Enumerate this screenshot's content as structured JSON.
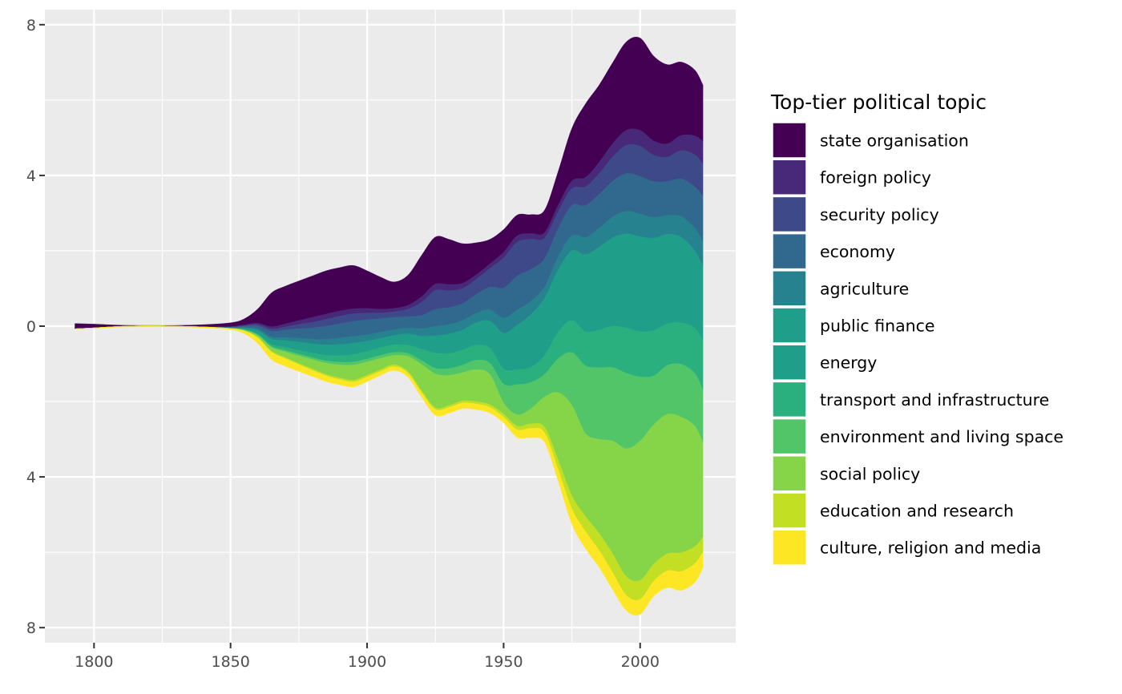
{
  "chart_data": {
    "type": "area",
    "subtype": "streamgraph",
    "title": "",
    "xlabel": "",
    "ylabel": "",
    "x_ticks": [
      "1800",
      "1850",
      "1900",
      "1950",
      "2000"
    ],
    "y_ticks": [
      "8",
      "4",
      "0",
      "4",
      "8"
    ],
    "xlim": [
      1782,
      2035
    ],
    "ylim": [
      -8.4,
      8.4
    ],
    "grid": true,
    "legend": {
      "title": "Top-tier political topic",
      "position": "right"
    },
    "x": [
      1793,
      1800,
      1810,
      1820,
      1830,
      1840,
      1850,
      1855,
      1860,
      1865,
      1870,
      1875,
      1880,
      1885,
      1890,
      1895,
      1900,
      1905,
      1910,
      1915,
      1920,
      1925,
      1930,
      1935,
      1940,
      1945,
      1950,
      1955,
      1960,
      1965,
      1970,
      1975,
      1980,
      1985,
      1990,
      1995,
      2000,
      2005,
      2010,
      2015,
      2020,
      2023
    ],
    "series": [
      {
        "name": "state organisation",
        "color": "#440154",
        "values": [
          0.14,
          0.1,
          0.03,
          0.01,
          0.02,
          0.06,
          0.1,
          0.16,
          0.38,
          0.9,
          1.0,
          1.05,
          1.1,
          1.15,
          1.15,
          1.15,
          1.0,
          0.85,
          0.7,
          0.8,
          1.1,
          1.25,
          1.2,
          1.05,
          0.85,
          0.65,
          0.6,
          0.55,
          0.5,
          0.6,
          0.9,
          1.4,
          1.95,
          2.05,
          2.15,
          2.35,
          2.45,
          2.25,
          2.1,
          1.95,
          1.75,
          1.5
        ]
      },
      {
        "name": "foreign policy",
        "color": "#482878",
        "values": [
          0,
          0,
          0,
          0,
          0,
          0,
          0.01,
          0.02,
          0.04,
          0.06,
          0.08,
          0.1,
          0.13,
          0.14,
          0.14,
          0.13,
          0.12,
          0.1,
          0.09,
          0.1,
          0.15,
          0.17,
          0.16,
          0.14,
          0.12,
          0.12,
          0.15,
          0.17,
          0.15,
          0.14,
          0.17,
          0.2,
          0.25,
          0.3,
          0.35,
          0.4,
          0.42,
          0.38,
          0.35,
          0.4,
          0.5,
          0.6
        ]
      },
      {
        "name": "security policy",
        "color": "#3e4989",
        "values": [
          0,
          0,
          0,
          0,
          0,
          0,
          0.01,
          0.02,
          0.04,
          0.06,
          0.08,
          0.12,
          0.15,
          0.18,
          0.2,
          0.2,
          0.18,
          0.15,
          0.15,
          0.2,
          0.35,
          0.5,
          0.45,
          0.4,
          0.4,
          0.5,
          0.8,
          0.9,
          0.8,
          0.55,
          0.45,
          0.45,
          0.5,
          0.55,
          0.65,
          0.75,
          0.8,
          0.7,
          0.65,
          0.75,
          0.85,
          0.85
        ]
      },
      {
        "name": "economy",
        "color": "#31688e",
        "values": [
          0,
          0,
          0,
          0,
          0,
          0,
          0.01,
          0.03,
          0.08,
          0.15,
          0.2,
          0.25,
          0.3,
          0.35,
          0.38,
          0.4,
          0.4,
          0.36,
          0.33,
          0.3,
          0.35,
          0.45,
          0.45,
          0.45,
          0.5,
          0.6,
          0.8,
          0.9,
          0.85,
          0.75,
          0.75,
          0.8,
          0.85,
          0.9,
          0.95,
          1.0,
          1.0,
          0.95,
          0.9,
          1.0,
          1.1,
          1.2
        ]
      },
      {
        "name": "agriculture",
        "color": "#26828e",
        "values": [
          0,
          0,
          0,
          0,
          0,
          0,
          0.01,
          0.02,
          0.04,
          0.06,
          0.08,
          0.1,
          0.12,
          0.15,
          0.17,
          0.18,
          0.17,
          0.16,
          0.15,
          0.16,
          0.2,
          0.25,
          0.25,
          0.25,
          0.25,
          0.3,
          0.4,
          0.4,
          0.35,
          0.3,
          0.35,
          0.4,
          0.45,
          0.5,
          0.55,
          0.6,
          0.6,
          0.55,
          0.5,
          0.55,
          0.6,
          0.65
        ]
      },
      {
        "name": "public finance",
        "color": "#1f9e89",
        "values": [
          0,
          0,
          0,
          0,
          0,
          0,
          0.01,
          0.03,
          0.08,
          0.12,
          0.15,
          0.18,
          0.2,
          0.22,
          0.25,
          0.25,
          0.22,
          0.2,
          0.2,
          0.25,
          0.3,
          0.4,
          0.45,
          0.45,
          0.5,
          0.6,
          0.8,
          1.0,
          1.2,
          1.3,
          1.4,
          1.55,
          1.7,
          1.8,
          1.9,
          2.0,
          2.0,
          1.95,
          1.9,
          1.8,
          1.6,
          1.55
        ]
      },
      {
        "name": "energy",
        "color": "#1f9e89",
        "values": [
          0,
          0,
          0,
          0,
          0,
          0,
          0,
          0,
          0.01,
          0.02,
          0.03,
          0.04,
          0.05,
          0.05,
          0.05,
          0.05,
          0.05,
          0.05,
          0.05,
          0.05,
          0.05,
          0.06,
          0.07,
          0.08,
          0.1,
          0.12,
          0.15,
          0.18,
          0.2,
          0.22,
          0.25,
          0.3,
          0.35,
          0.4,
          0.45,
          0.5,
          0.52,
          0.5,
          0.48,
          0.47,
          0.45,
          0.45
        ]
      },
      {
        "name": "transport and infrastructure",
        "color": "#2ab07f",
        "values": [
          0,
          0,
          0,
          0,
          0,
          0,
          0,
          0.01,
          0.02,
          0.05,
          0.08,
          0.1,
          0.12,
          0.15,
          0.17,
          0.2,
          0.2,
          0.2,
          0.2,
          0.22,
          0.3,
          0.4,
          0.4,
          0.4,
          0.4,
          0.4,
          0.4,
          0.4,
          0.4,
          0.5,
          0.7,
          0.85,
          0.9,
          1.0,
          1.1,
          1.2,
          1.2,
          1.2,
          1.1,
          1.1,
          1.2,
          1.3
        ]
      },
      {
        "name": "environment and living space",
        "color": "#52c569",
        "values": [
          0,
          0,
          0,
          0,
          0,
          0,
          0,
          0.01,
          0.02,
          0.03,
          0.04,
          0.05,
          0.05,
          0.06,
          0.07,
          0.08,
          0.08,
          0.08,
          0.08,
          0.08,
          0.1,
          0.15,
          0.18,
          0.2,
          0.25,
          0.3,
          0.5,
          0.8,
          0.7,
          0.6,
          0.9,
          1.4,
          1.8,
          1.9,
          1.95,
          2.0,
          1.7,
          1.3,
          1.3,
          1.4,
          1.4,
          1.4
        ]
      },
      {
        "name": "social policy",
        "color": "#86d549",
        "values": [
          0,
          0,
          0,
          0,
          0,
          0,
          0,
          0.02,
          0.05,
          0.1,
          0.15,
          0.2,
          0.25,
          0.3,
          0.35,
          0.4,
          0.35,
          0.3,
          0.25,
          0.4,
          0.7,
          0.9,
          0.8,
          0.75,
          0.85,
          0.8,
          0.3,
          0.3,
          0.4,
          0.8,
          1.8,
          2.4,
          2.2,
          2.5,
          3.0,
          3.4,
          3.7,
          3.7,
          3.7,
          3.6,
          3.2,
          2.5
        ]
      },
      {
        "name": "education and research",
        "color": "#c2df23",
        "values": [
          0,
          0,
          0,
          0,
          0,
          0,
          0,
          0,
          0.01,
          0.02,
          0.03,
          0.03,
          0.04,
          0.04,
          0.04,
          0.05,
          0.05,
          0.05,
          0.05,
          0.05,
          0.05,
          0.05,
          0.05,
          0.06,
          0.06,
          0.07,
          0.08,
          0.1,
          0.12,
          0.15,
          0.25,
          0.35,
          0.4,
          0.45,
          0.5,
          0.5,
          0.5,
          0.45,
          0.45,
          0.5,
          0.45,
          0.4
        ]
      },
      {
        "name": "culture, religion and media",
        "color": "#fde725",
        "values": [
          0,
          0.01,
          0.02,
          0.03,
          0.02,
          0.02,
          0.03,
          0.07,
          0.15,
          0.2,
          0.2,
          0.18,
          0.16,
          0.15,
          0.14,
          0.13,
          0.12,
          0.1,
          0.1,
          0.1,
          0.12,
          0.15,
          0.15,
          0.15,
          0.15,
          0.15,
          0.15,
          0.2,
          0.25,
          0.25,
          0.3,
          0.4,
          0.45,
          0.45,
          0.45,
          0.4,
          0.4,
          0.4,
          0.45,
          0.5,
          0.5,
          0.4
        ]
      }
    ]
  }
}
